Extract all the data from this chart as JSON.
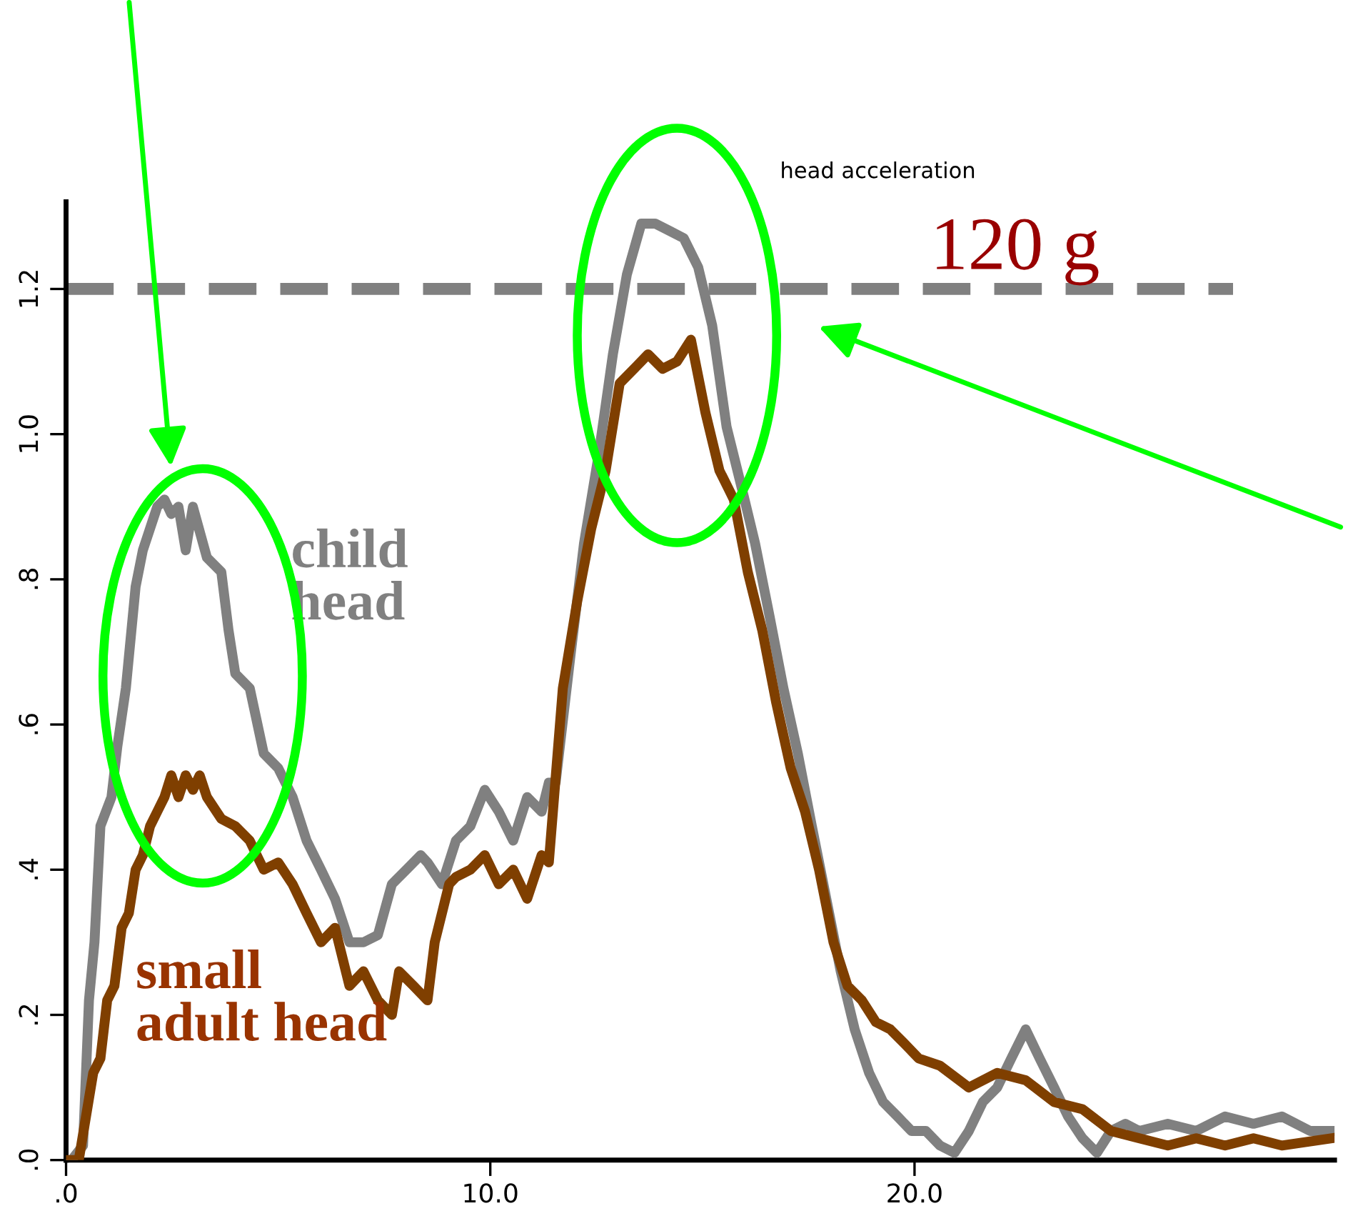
{
  "chart_data": {
    "type": "line",
    "title": "head acceleration",
    "xlim": [
      0,
      29.9
    ],
    "xticks": [
      {
        "value": 0,
        "label": ".0"
      },
      {
        "value": 10,
        "label": "10.0"
      },
      {
        "value": 20,
        "label": "20.0"
      }
    ],
    "ylim": [
      0,
      1.32
    ],
    "yticks": [
      {
        "value": 0,
        "label": ".0"
      },
      {
        "value": 0.2,
        "label": ".2"
      },
      {
        "value": 0.4,
        "label": ".4"
      },
      {
        "value": 0.6,
        "label": ".6"
      },
      {
        "value": 0.8,
        "label": ".8"
      },
      {
        "value": 1.0,
        "label": "1.0"
      },
      {
        "value": 1.2,
        "label": "1.2"
      }
    ],
    "grid": false,
    "marker": "none",
    "line_style": "solid",
    "ref_lines": [
      {
        "axis": "y",
        "value": 1.2,
        "label": "120 g",
        "color": "#808080",
        "line_style": "dashed"
      }
    ],
    "series": [
      {
        "name": "child head",
        "color": "#808080",
        "x": [
          0.13,
          0.4,
          0.54,
          0.67,
          0.81,
          1.07,
          1.21,
          1.41,
          1.64,
          1.81,
          1.98,
          2.15,
          2.32,
          2.48,
          2.65,
          2.82,
          2.99,
          3.32,
          3.66,
          3.83,
          3.99,
          4.33,
          4.66,
          5.0,
          5.34,
          5.67,
          6.01,
          6.34,
          6.68,
          7.01,
          7.35,
          7.68,
          8.02,
          8.36,
          8.52,
          8.86,
          9.19,
          9.53,
          9.87,
          10.2,
          10.54,
          10.87,
          11.21,
          11.38,
          11.54,
          11.88,
          12.21,
          12.55,
          12.89,
          13.22,
          13.56,
          13.89,
          14.23,
          14.56,
          14.9,
          15.23,
          15.57,
          15.91,
          16.24,
          16.58,
          16.91,
          17.25,
          17.58,
          17.92,
          18.26,
          18.59,
          18.93,
          19.26,
          19.6,
          19.93,
          20.27,
          20.6,
          20.94,
          21.28,
          21.61,
          21.95,
          22.28,
          22.62,
          22.95,
          23.29,
          23.62,
          23.96,
          24.3,
          24.63,
          24.97,
          25.3,
          25.97,
          26.64,
          27.32,
          27.99,
          28.66,
          29.33,
          29.83
        ],
        "values": [
          0.0,
          0.02,
          0.22,
          0.3,
          0.46,
          0.5,
          0.57,
          0.65,
          0.79,
          0.84,
          0.87,
          0.9,
          0.91,
          0.89,
          0.9,
          0.84,
          0.9,
          0.83,
          0.81,
          0.73,
          0.67,
          0.65,
          0.56,
          0.54,
          0.5,
          0.44,
          0.4,
          0.36,
          0.3,
          0.3,
          0.31,
          0.38,
          0.4,
          0.42,
          0.41,
          0.38,
          0.44,
          0.46,
          0.51,
          0.48,
          0.44,
          0.5,
          0.48,
          0.52,
          0.52,
          0.69,
          0.85,
          0.97,
          1.11,
          1.22,
          1.29,
          1.29,
          1.28,
          1.27,
          1.23,
          1.15,
          1.01,
          0.93,
          0.85,
          0.75,
          0.65,
          0.56,
          0.46,
          0.36,
          0.26,
          0.18,
          0.12,
          0.08,
          0.06,
          0.04,
          0.04,
          0.02,
          0.01,
          0.04,
          0.08,
          0.1,
          0.14,
          0.18,
          0.14,
          0.1,
          0.06,
          0.03,
          0.01,
          0.04,
          0.05,
          0.04,
          0.05,
          0.04,
          0.06,
          0.05,
          0.06,
          0.04,
          0.04
        ]
      },
      {
        "name": "small adult head",
        "color": "#7f3f00",
        "x": [
          0.0,
          0.3,
          0.47,
          0.64,
          0.81,
          0.97,
          1.14,
          1.31,
          1.48,
          1.64,
          1.81,
          1.98,
          2.15,
          2.32,
          2.48,
          2.65,
          2.82,
          2.99,
          3.15,
          3.32,
          3.66,
          3.99,
          4.33,
          4.66,
          5.0,
          5.34,
          5.67,
          6.01,
          6.34,
          6.68,
          7.01,
          7.35,
          7.68,
          7.85,
          8.19,
          8.52,
          8.69,
          9.03,
          9.19,
          9.53,
          9.87,
          10.2,
          10.54,
          10.87,
          11.21,
          11.38,
          11.71,
          12.05,
          12.38,
          12.72,
          13.05,
          13.39,
          13.72,
          14.06,
          14.4,
          14.73,
          15.07,
          15.4,
          15.74,
          16.07,
          16.41,
          16.74,
          17.08,
          17.42,
          17.75,
          18.09,
          18.42,
          18.76,
          19.09,
          19.43,
          19.77,
          20.1,
          20.6,
          21.28,
          21.95,
          22.62,
          23.29,
          23.96,
          24.63,
          25.3,
          25.97,
          26.64,
          27.32,
          27.99,
          28.66,
          29.83
        ],
        "values": [
          0.0,
          0.0,
          0.06,
          0.12,
          0.14,
          0.22,
          0.24,
          0.32,
          0.34,
          0.4,
          0.42,
          0.46,
          0.48,
          0.5,
          0.53,
          0.5,
          0.53,
          0.51,
          0.53,
          0.5,
          0.47,
          0.46,
          0.44,
          0.4,
          0.41,
          0.38,
          0.34,
          0.3,
          0.32,
          0.24,
          0.26,
          0.22,
          0.2,
          0.26,
          0.24,
          0.22,
          0.3,
          0.38,
          0.39,
          0.4,
          0.42,
          0.38,
          0.4,
          0.36,
          0.42,
          0.41,
          0.65,
          0.77,
          0.87,
          0.95,
          1.07,
          1.09,
          1.11,
          1.09,
          1.1,
          1.13,
          1.03,
          0.95,
          0.91,
          0.81,
          0.73,
          0.63,
          0.54,
          0.48,
          0.4,
          0.3,
          0.24,
          0.22,
          0.19,
          0.18,
          0.16,
          0.14,
          0.13,
          0.1,
          0.12,
          0.11,
          0.08,
          0.07,
          0.04,
          0.03,
          0.02,
          0.03,
          0.02,
          0.03,
          0.02,
          0.03
        ]
      }
    ]
  }
}
